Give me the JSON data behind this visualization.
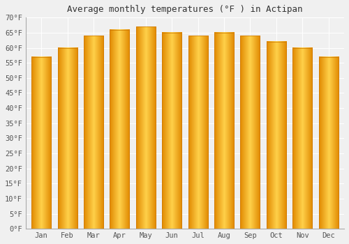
{
  "title": "Average monthly temperatures (°F ) in Actipan",
  "months": [
    "Jan",
    "Feb",
    "Mar",
    "Apr",
    "May",
    "Jun",
    "Jul",
    "Aug",
    "Sep",
    "Oct",
    "Nov",
    "Dec"
  ],
  "values": [
    57,
    60,
    64,
    66,
    67,
    65,
    64,
    65,
    64,
    62,
    60,
    57
  ],
  "bar_color_left": "#E8920A",
  "bar_color_mid": "#FFD040",
  "bar_color_right": "#E8920A",
  "ylim": [
    0,
    70
  ],
  "yticks": [
    0,
    5,
    10,
    15,
    20,
    25,
    30,
    35,
    40,
    45,
    50,
    55,
    60,
    65,
    70
  ],
  "background_color": "#f0f0f0",
  "plot_bg_color": "#f0f0f0",
  "grid_color": "#ffffff",
  "title_fontsize": 9,
  "tick_fontsize": 7.5,
  "bar_width": 0.75
}
